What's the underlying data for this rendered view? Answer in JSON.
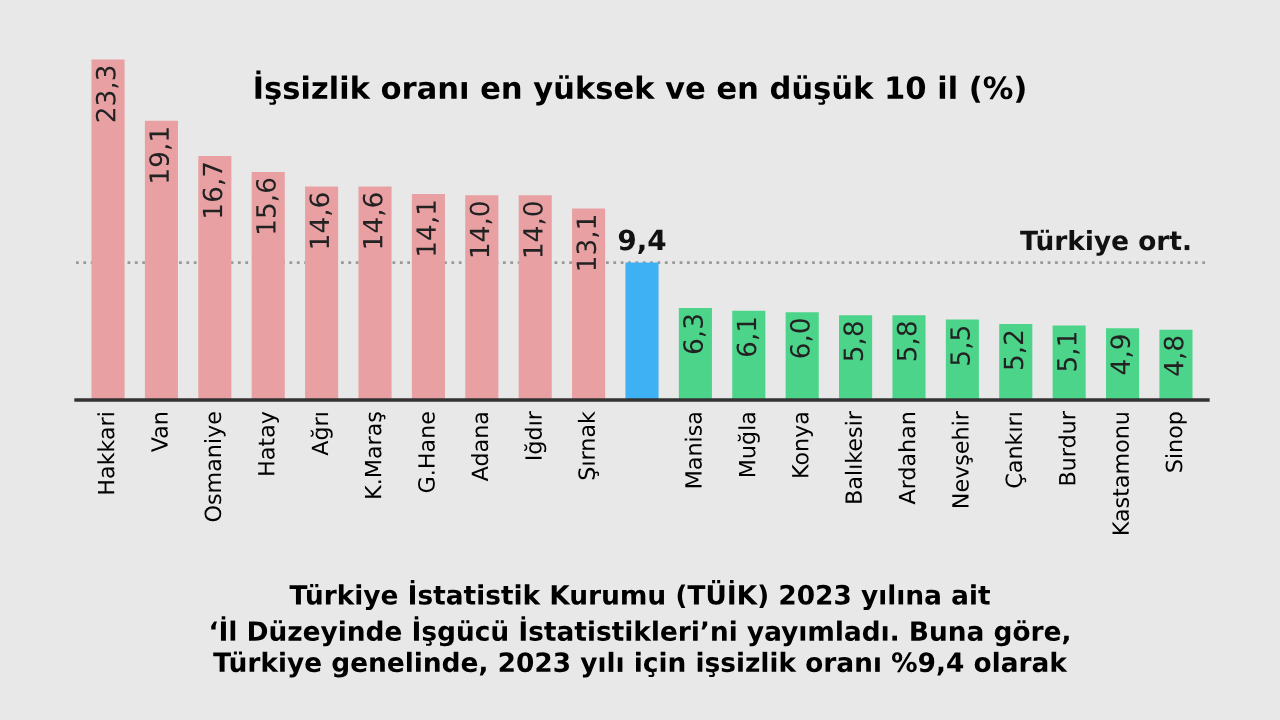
{
  "chart_data": {
    "type": "bar",
    "title": "İşsizlik oranı en yüksek ve en düşük 10 il (%)",
    "categories": [
      "Hakkari",
      "Van",
      "Osmaniye",
      "Hatay",
      "Ağrı",
      "K.Maraş",
      "G.Hane",
      "Adana",
      "Iğdır",
      "Şırnak",
      null,
      "Manisa",
      "Muğla",
      "Konya",
      "Balıkesir",
      "Ardahan",
      "Nevşehir",
      "Çankırı",
      "Burdur",
      "Kastamonu",
      "Sinop"
    ],
    "values": [
      23.3,
      19.1,
      16.7,
      15.6,
      14.6,
      14.6,
      14.1,
      14.0,
      14.0,
      13.1,
      9.4,
      6.3,
      6.1,
      6.0,
      5.8,
      5.8,
      5.5,
      5.2,
      5.1,
      4.9,
      4.8
    ],
    "value_labels": [
      "23,3",
      "19,1",
      "16,7",
      "15,6",
      "14,6",
      "14,6",
      "14,1",
      "14,0",
      "14,0",
      "13,1",
      "9,4",
      "6,3",
      "6,1",
      "6,0",
      "5,8",
      "5,8",
      "5,5",
      "5,2",
      "5,1",
      "4,9",
      "4,8"
    ],
    "colors": [
      "#e8a0a3",
      "#e8a0a3",
      "#e8a0a3",
      "#e8a0a3",
      "#e8a0a3",
      "#e8a0a3",
      "#e8a0a3",
      "#e8a0a3",
      "#e8a0a3",
      "#e8a0a3",
      "#3eb1f5",
      "#4cd48a",
      "#4cd48a",
      "#4cd48a",
      "#4cd48a",
      "#4cd48a",
      "#4cd48a",
      "#4cd48a",
      "#4cd48a",
      "#4cd48a",
      "#4cd48a"
    ],
    "ref_lines": [
      {
        "axis": "y",
        "value": 9.4,
        "label": "Türkiye ort.",
        "color": "#999999",
        "line_style": "dotted"
      }
    ],
    "annotations": [
      "Türkiye İstatistik Kurumu (TÜİK) 2023 yılına ait\n‘İl Düzeyinde İşgücü İstatistikleri’ni yayımladı. Buna göre,\nTürkiye genelinde, 2023 yılı için işsizlik oranı %9,4 olarak"
    ],
    "grid": false,
    "legend": false
  }
}
